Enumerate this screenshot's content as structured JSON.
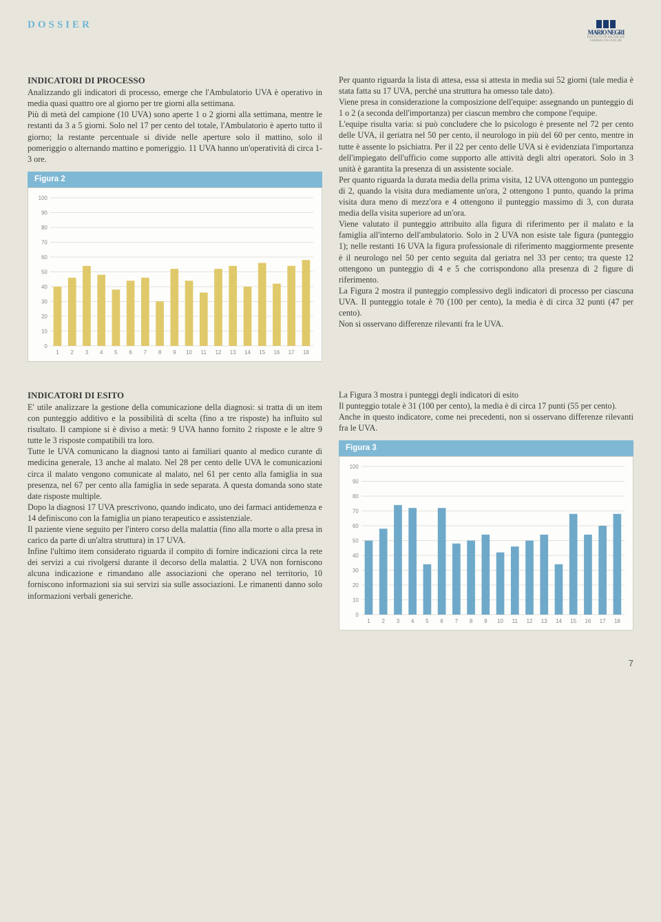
{
  "header": {
    "title": "DOSSIER",
    "page_number": "7"
  },
  "logo": {
    "brand_top": "MN",
    "brand_mid": "MARIO NEGRI",
    "brand_sub": "ISTITUTO DI RICERCHE FARMACOLOGICHE"
  },
  "section1": {
    "title": "INDICATORI DI PROCESSO",
    "left_text": "Analizzando gli indicatori di processo, emerge che l'Ambulatorio UVA è operativo in media quasi quattro ore al giorno per tre giorni alla settimana.\nPiù di metà del campione (10 UVA) sono aperte 1 o 2 giorni alla settimana, mentre le restanti da 3 a 5 giorni. Solo nel 17 per cento del totale, l'Ambulatorio è aperto tutto il giorno; la restante percentuale si divide nelle aperture solo il mattino, solo il pomeriggio o alternando mattino e pomeriggio. 11 UVA hanno un'operatività di circa 1-3 ore.",
    "right_text": "Per quanto riguarda la lista di attesa, essa si attesta in media sui 52 giorni (tale media è stata fatta su 17 UVA, perché una struttura ha omesso tale dato).\nViene presa in considerazione la composizione dell'equipe: assegnando un punteggio di 1 o 2 (a seconda dell'importanza) per ciascun membro che compone l'equipe.\nL'equipe risulta varia: si può concludere che lo psicologo è presente nel 72 per cento delle UVA, il geriatra nel 50 per cento, il neurologo in più del 60 per cento, mentre in tutte è assente lo psichiatra. Per il 22 per cento delle UVA si è evidenziata l'importanza dell'impiegato dell'ufficio come supporto alle attività degli altri operatori. Solo in 3 unità è garantita la presenza di un assistente sociale.\nPer quanto riguarda la durata media della prima visita, 12 UVA ottengono un punteggio di 2, quando la visita dura mediamente un'ora, 2 ottengono 1 punto, quando la prima visita dura meno di mezz'ora e 4 ottengono il punteggio massimo di 3, con durata media della visita superiore ad un'ora.\nViene valutato il punteggio attribuito alla figura di riferimento per il malato e la famiglia all'interno dell'ambulatorio. Solo in 2 UVA non esiste tale figura (punteggio 1); nelle restanti 16 UVA la figura professionale di riferimento maggiormente presente è il neurologo nel 50 per cento seguita dal geriatra nel 33 per cento; tra queste 12 ottengono un punteggio di 4 e 5 che corrispondono alla presenza di 2 figure di riferimento.\nLa Figura 2 mostra il punteggio complessivo degli indicatori di processo per ciascuna UVA. Il punteggio totale è 70 (100 per cento), la media è di circa 32 punti (47 per cento).\nNon si osservano differenze rilevanti fra le UVA."
  },
  "section2": {
    "title": "INDICATORI DI ESITO",
    "left_text": "E' utile analizzare la gestione della comunicazione della diagnosi: si tratta di un item con punteggio additivo e la possibilità di scelta (fino a tre risposte) ha influito sul risultato. Il campione si è diviso a metà: 9 UVA hanno fornito 2 risposte e le altre 9 tutte le 3 risposte compatibili tra loro.\nTutte le UVA comunicano la diagnosi tanto ai familiari quanto al medico curante di medicina generale, 13 anche al malato. Nel 28 per cento delle UVA le comunicazioni circa il malato vengono comunicate al malato, nel 61 per cento alla famiglia in sua presenza, nel 67 per cento alla famiglia in sede separata. A questa domanda sono state date risposte multiple.\nDopo la diagnosi 17 UVA prescrivono, quando indicato, uno dei farmaci antidemenza e 14 definiscono con la famiglia un piano terapeutico e assistenziale.\nIl paziente viene seguito per l'intero corso della malattia (fino alla morte o alla presa in carico da parte di un'altra struttura) in 17 UVA.\nInfine l'ultimo item considerato riguarda il compito di fornire indicazioni circa la rete dei servizi a cui rivolgersi durante il decorso della malattia. 2 UVA non forniscono alcuna indicazione e rimandano alle associazioni che operano nel territorio, 10 forniscono informazioni sia sui servizi sia sulle associazioni. Le rimanenti danno solo informazioni verbali generiche.",
    "right_text": "La Figura 3 mostra i punteggi degli indicatori di esito\nIl punteggio totale è 31 (100 per cento), la media è di circa 17 punti (55 per cento).\nAnche in questo indicatore, come nei precedenti, non si osservano differenze rilevanti fra le UVA."
  },
  "figure2": {
    "label": "Figura 2",
    "type": "bar",
    "ylim": [
      0,
      100
    ],
    "ytick_step": 10,
    "categories": [
      "1",
      "2",
      "3",
      "4",
      "5",
      "6",
      "7",
      "8",
      "9",
      "10",
      "11",
      "12",
      "13",
      "14",
      "15",
      "16",
      "17",
      "18"
    ],
    "values": [
      40,
      46,
      54,
      48,
      38,
      44,
      46,
      30,
      52,
      44,
      36,
      52,
      54,
      40,
      56,
      42,
      54,
      58
    ],
    "bar_color": "#e0c96a",
    "background_color": "#fdfdfb",
    "grid_color": "#e2e0d8",
    "axis_text_color": "#888888",
    "bar_width": 0.55,
    "axis_fontsize": 8
  },
  "figure3": {
    "label": "Figura 3",
    "type": "bar",
    "ylim": [
      0,
      100
    ],
    "ytick_step": 10,
    "categories": [
      "1",
      "2",
      "3",
      "4",
      "5",
      "6",
      "7",
      "8",
      "9",
      "10",
      "11",
      "12",
      "13",
      "14",
      "15",
      "16",
      "17",
      "18"
    ],
    "values": [
      50,
      58,
      74,
      72,
      34,
      72,
      48,
      50,
      54,
      42,
      46,
      50,
      54,
      34,
      68,
      54,
      60,
      68
    ],
    "bar_color": "#6fa9c9",
    "background_color": "#fdfdfb",
    "grid_color": "#e2e0d8",
    "axis_text_color": "#888888",
    "bar_width": 0.55,
    "axis_fontsize": 8
  }
}
